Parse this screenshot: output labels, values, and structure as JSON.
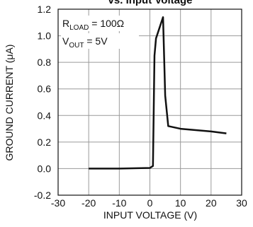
{
  "chart_data": {
    "type": "line",
    "title": "vs. Input Voltage",
    "x_label": "INPUT VOLTAGE (V)",
    "y_label": "GROUND CURRENT (μA)",
    "annotations": [
      [
        "R",
        "LOAD",
        " = 100Ω"
      ],
      [
        "V",
        "OUT",
        " = 5V"
      ]
    ],
    "x": [
      -20,
      -10,
      0,
      1,
      1.5,
      2,
      4.3,
      5,
      6,
      10,
      20,
      25
    ],
    "series": [
      {
        "color": "#111111",
        "values": [
          0,
          0,
          0.005,
          0.02,
          0.85,
          0.98,
          1.14,
          0.55,
          0.32,
          0.3,
          0.28,
          0.265
        ]
      }
    ],
    "xlim": [
      -30,
      30
    ],
    "xticks": [
      -30,
      -20,
      -10,
      0,
      10,
      20,
      30
    ],
    "ylim": [
      -0.2,
      1.2
    ],
    "yticks": [
      -0.2,
      {
        "value": 0,
        "label": "0.0"
      },
      0.2,
      0.4,
      0.6,
      0.8,
      {
        "value": 1,
        "label": "1.0"
      },
      1.2
    ],
    "grid": true
  }
}
